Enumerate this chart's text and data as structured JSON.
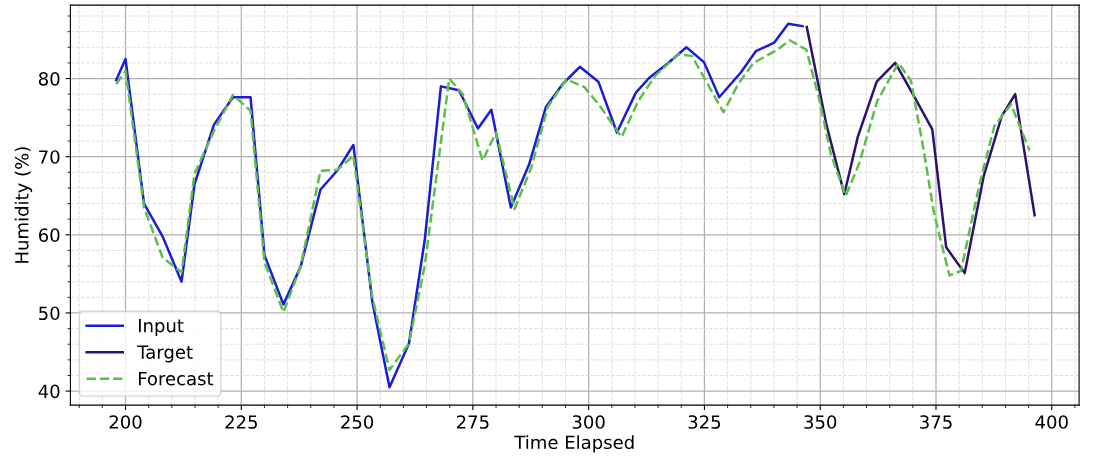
{
  "chart_data": {
    "type": "line",
    "xlabel": "Time Elapsed",
    "ylabel": "Humidity (%)",
    "xlim": [
      188.1,
      405.9
    ],
    "xticks": [
      200,
      225,
      250,
      275,
      300,
      325,
      350,
      375,
      400
    ],
    "ylim": [
      38.2,
      89.4
    ],
    "yticks": [
      40,
      50,
      60,
      70,
      80
    ],
    "grid": true,
    "legend": "lower left",
    "marker": "none",
    "series": [
      {
        "name": "Input",
        "color": "#1c1cd6",
        "line_style": "solid",
        "x": [
          198.0,
          200.0,
          204.0,
          208.0,
          212.1,
          214.9,
          219.1,
          223.2,
          227.0,
          230.0,
          234.1,
          237.8,
          242.1,
          245.7,
          249.2,
          253.3,
          257.0,
          261.2,
          264.6,
          268.1,
          272.0,
          276.1,
          279.0,
          283.2,
          287.2,
          290.8,
          294.4,
          298.1,
          302.1,
          306.1,
          310.2,
          313.1,
          317.0,
          321.1,
          324.9,
          328.2,
          332.9,
          336.1,
          340.1,
          343.1,
          346.2
        ],
        "values": [
          79.8,
          82.5,
          64.0,
          59.8,
          54.0,
          66.5,
          74.1,
          77.6,
          77.6,
          57.4,
          51.1,
          55.9,
          65.8,
          68.2,
          71.5,
          51.4,
          40.5,
          46.1,
          59.3,
          79.0,
          78.5,
          73.6,
          76.0,
          63.5,
          69.1,
          76.4,
          79.3,
          81.5,
          79.6,
          73.1,
          78.2,
          80.1,
          81.9,
          84.0,
          82.1,
          77.6,
          80.8,
          83.5,
          84.6,
          87.0,
          86.7
        ]
      },
      {
        "name": "Target",
        "color": "#2e1170",
        "line_style": "solid",
        "x": [
          347.1,
          351.3,
          355.2,
          358.1,
          362.2,
          366.2,
          370.4,
          374.2,
          377.2,
          381.2,
          385.3,
          389.2,
          392.1,
          396.3
        ],
        "values": [
          86.6,
          74.2,
          65.2,
          72.5,
          79.6,
          82.0,
          77.6,
          73.5,
          58.4,
          55.1,
          67.5,
          75.2,
          78.0,
          62.5
        ]
      },
      {
        "name": "Forecast",
        "color": "#5cbf4a",
        "line_style": "dashed",
        "x": [
          198.0,
          200.0,
          204.0,
          208.0,
          212.1,
          214.9,
          219.1,
          223.2,
          227.0,
          230.0,
          234.1,
          237.8,
          242.1,
          245.7,
          249.2,
          253.3,
          257.0,
          261.2,
          264.6,
          269.9,
          272.8,
          277.1,
          280.0,
          284.0,
          287.6,
          291.2,
          295.2,
          299.1,
          302.4,
          307.1,
          310.7,
          314.3,
          319.4,
          322.3,
          325.5,
          329.1,
          332.3,
          335.6,
          340.8,
          343.4,
          347.0,
          349.9,
          352.3,
          355.5,
          358.4,
          362.3,
          366.9,
          369.6,
          372.0,
          374.6,
          377.9,
          380.4,
          384.4,
          387.6,
          391.2,
          395.2
        ],
        "values": [
          79.3,
          81.0,
          63.5,
          57.1,
          55.2,
          67.8,
          73.3,
          77.9,
          75.9,
          56.5,
          50.1,
          55.9,
          68.2,
          68.3,
          70.1,
          52.0,
          42.7,
          46.1,
          56.0,
          80.0,
          78.0,
          69.5,
          73.1,
          63.3,
          68.6,
          76.4,
          79.9,
          78.9,
          76.5,
          72.5,
          77.1,
          80.3,
          83.1,
          82.9,
          79.5,
          75.7,
          79.3,
          82.0,
          83.7,
          84.9,
          83.7,
          77.1,
          70.3,
          65.0,
          69.1,
          77.1,
          82.0,
          79.7,
          72.0,
          62.7,
          54.8,
          55.4,
          66.5,
          73.9,
          76.7,
          70.8
        ]
      }
    ]
  }
}
